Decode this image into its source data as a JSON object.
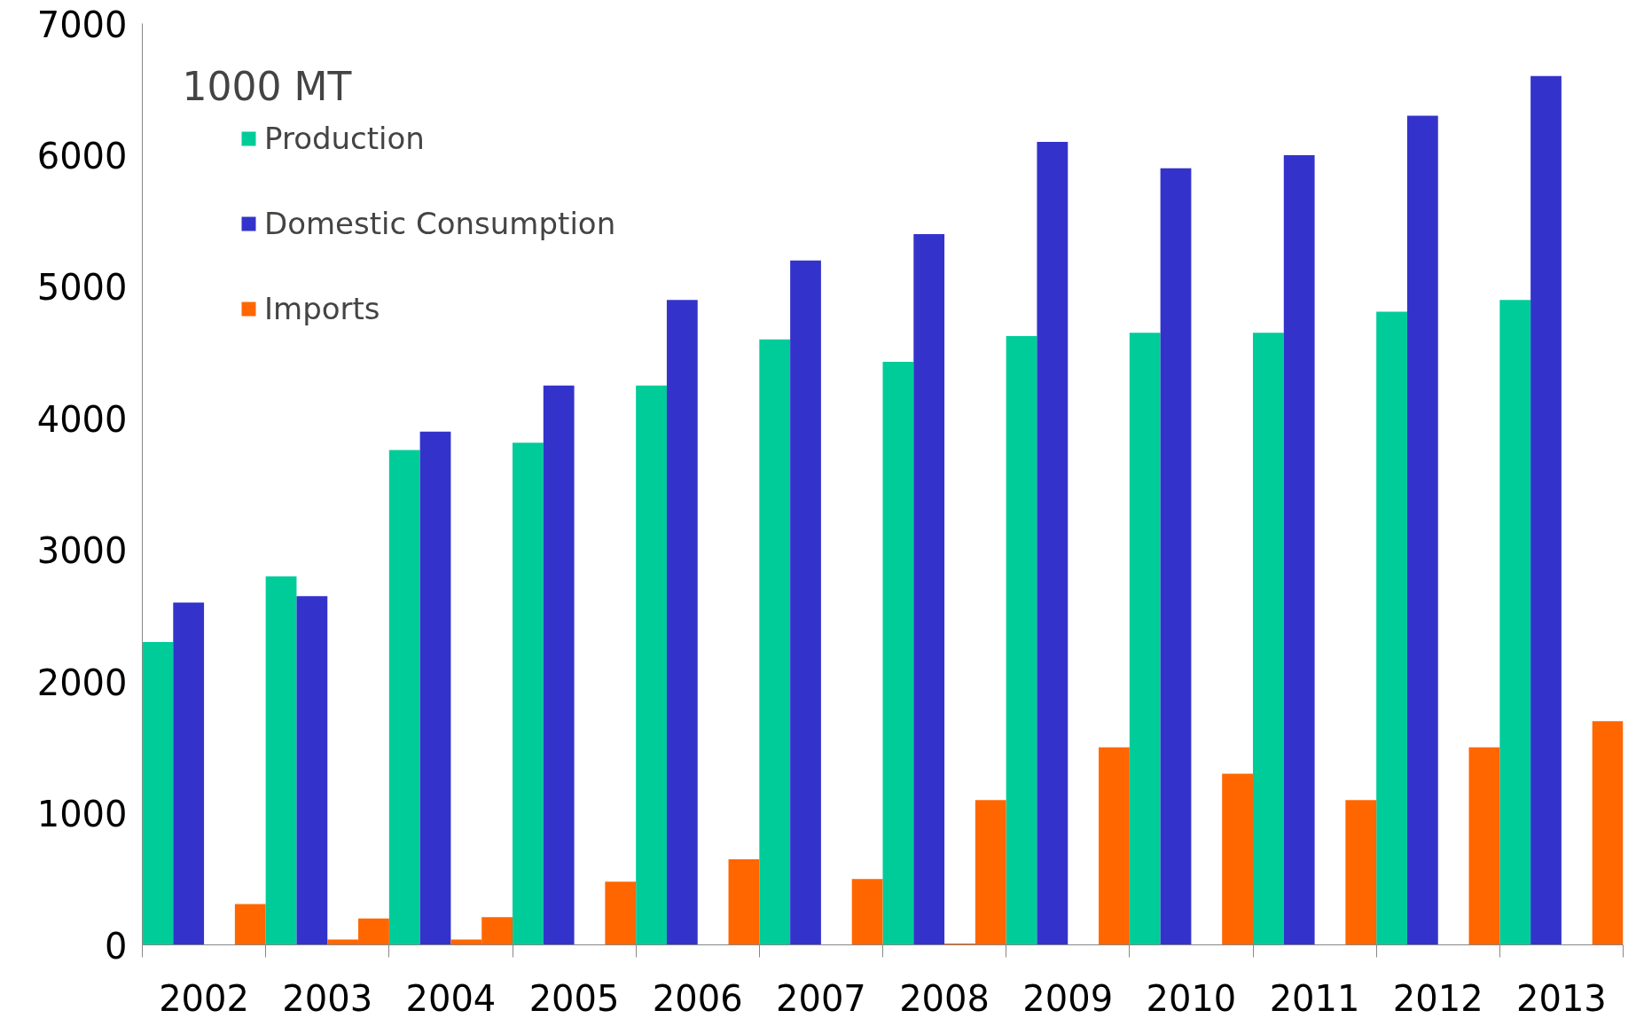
{
  "chart_data": {
    "type": "bar",
    "ylabel": "1000 MT",
    "categories": [
      "2002",
      "2003",
      "2004",
      "2005",
      "2006",
      "2007",
      "2008",
      "2009",
      "2010",
      "2011",
      "2012",
      "2013"
    ],
    "series": [
      {
        "name": "Production",
        "color": "#00cc99",
        "values": [
          2300,
          2800,
          3760,
          3815,
          4250,
          4600,
          4430,
          4625,
          4650,
          4650,
          4810,
          4900
        ]
      },
      {
        "name": "Domestic Consumption",
        "color": "#3333cc",
        "values": [
          2600,
          2650,
          3900,
          4250,
          4900,
          5200,
          5400,
          6100,
          5900,
          6000,
          6300,
          6600
        ]
      },
      {
        "color": "#ff6600",
        "values": [
          0,
          40,
          40,
          0,
          0,
          0,
          10,
          0,
          0,
          0,
          0,
          0
        ]
      },
      {
        "name": "Imports",
        "color": "#ff6600",
        "values": [
          310,
          200,
          210,
          480,
          650,
          500,
          1100,
          1500,
          1300,
          1100,
          1500,
          1700
        ]
      }
    ],
    "ylim": [
      0,
      7000
    ],
    "yticks": [
      0,
      1000,
      2000,
      3000,
      4000,
      5000,
      6000,
      7000
    ],
    "grid": false,
    "legend": "top left"
  }
}
